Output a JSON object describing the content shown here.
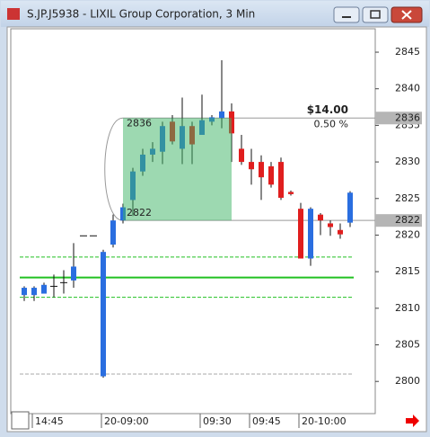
{
  "chart_data": {
    "type": "candlestick",
    "title": "S.JP.J5938 - LIXIL Group Corporation, 3 Min",
    "categories": [
      null,
      "14:45",
      null,
      null,
      null,
      null,
      null,
      null,
      "20-09:00",
      null,
      null,
      null,
      null,
      null,
      null,
      null,
      null,
      null,
      "09:30",
      null,
      null,
      null,
      null,
      "09:45",
      null,
      null,
      null,
      null,
      "20-10:00",
      null,
      null,
      null,
      null,
      null
    ],
    "open": [
      2811.8,
      2811.8,
      2812,
      2813,
      2813.5,
      2813.8,
      2819.9,
      2819.9,
      2800.7,
      2818.7,
      2822,
      2824.8,
      2828.7,
      2831,
      2831.4,
      2835.5,
      2831.8,
      2834.9,
      2833.7,
      2835.5,
      2836,
      2836.9,
      2831.8,
      2830,
      2830,
      2829.4,
      2830,
      2825.9,
      2823.6,
      2816.8,
      2822.8,
      2821.6,
      2820.7,
      2821.7
    ],
    "high": [
      2813,
      2813,
      2813.5,
      2814.6,
      2815.2,
      2818.9,
      2819.9,
      2819.9,
      2818,
      2822.8,
      2824.3,
      2829.2,
      2831.8,
      2832.7,
      2835.5,
      2836.4,
      2838.8,
      2835.5,
      2839.2,
      2836.4,
      2843.9,
      2838,
      2833.7,
      2831.8,
      2830.9,
      2830,
      2830.6,
      2826.1,
      2824.4,
      2823.8,
      2823,
      2822,
      2821.6,
      2826
    ],
    "low": [
      2811,
      2811,
      2812,
      2811.5,
      2812,
      2812.8,
      2819.9,
      2819.9,
      2800.5,
      2818.3,
      2821.6,
      2822.6,
      2828.1,
      2830,
      2829.7,
      2832.4,
      2829.7,
      2829.7,
      2833.7,
      2835,
      2834.6,
      2830,
      2829.6,
      2826.9,
      2824.8,
      2826.5,
      2824.8,
      2825.4,
      2816.8,
      2815.8,
      2820,
      2819.9,
      2819.5,
      2821.1
    ],
    "close": [
      2812.8,
      2812.8,
      2813.2,
      2813,
      2813.5,
      2815.7,
      2819.9,
      2819.9,
      2817.7,
      2822,
      2823.8,
      2828.7,
      2831,
      2831.8,
      2834.9,
      2832.8,
      2834.9,
      2832.4,
      2835.7,
      2836.1,
      2836.9,
      2833.9,
      2830,
      2829,
      2827.9,
      2826.9,
      2825.1,
      2825.6,
      2816.8,
      2823.6,
      2822,
      2821.1,
      2820.1,
      2825.8
    ],
    "up_color": "#2a6ee0",
    "down_color": "#e01e1e",
    "ylim": [
      2795.6,
      2848.2
    ],
    "yticks": [
      2800,
      2805,
      2810,
      2815,
      2820,
      2825,
      2830,
      2835,
      2840,
      2845
    ],
    "levels": [
      {
        "value": 2817,
        "style": "dashed",
        "color": "#22c022"
      },
      {
        "value": 2814.2,
        "style": "solid",
        "color": "#22c022"
      },
      {
        "value": 2811.5,
        "style": "dashed",
        "color": "#22c022"
      },
      {
        "value": 2801,
        "style": "dashed",
        "color": "#aaaaaa"
      }
    ],
    "measure": {
      "high": 2836,
      "low": 2822,
      "change": "$14.00",
      "percent": "0.50 %"
    }
  }
}
